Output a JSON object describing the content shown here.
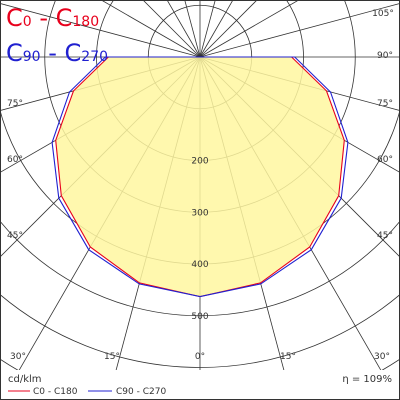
{
  "legend": {
    "c0": {
      "main": "C",
      "sub": "0",
      "sep": " - ",
      "main2": "C",
      "sub2": "180"
    },
    "c90": {
      "main": "C",
      "sub": "90",
      "sep": " - ",
      "main2": "C",
      "sub2": "270"
    }
  },
  "footer": {
    "units": "cd/klm",
    "efficiency": "η = 109%",
    "series_c0": "C0 - C180",
    "series_c90": "C90 - C270"
  },
  "colors": {
    "c0": "#e8001c",
    "c90": "#2020d0",
    "fill": "#fff7a0",
    "grid": "#333333"
  },
  "chart_data": {
    "type": "polar",
    "units": "cd/klm",
    "radial_ticks": [
      100,
      200,
      300,
      400,
      500
    ],
    "radial_tick_labels": [
      "200",
      "300",
      "400",
      "500"
    ],
    "angle_ticks_deg": [
      0,
      15,
      30,
      45,
      60,
      75,
      90,
      105
    ],
    "angle_labels": {
      "bottom": [
        "30°",
        "15°",
        "0°",
        "15°",
        "30°"
      ],
      "left": [
        "45°",
        "60°",
        "75°"
      ],
      "right": [
        "45°",
        "60°",
        "75°",
        "90°",
        "105°"
      ]
    },
    "series": [
      {
        "name": "C0 - C180",
        "angles_deg": [
          0,
          15,
          30,
          45,
          60,
          75,
          90
        ],
        "values": [
          463,
          452,
          424,
          379,
          322,
          253,
          177
        ]
      },
      {
        "name": "C90 - C270",
        "angles_deg": [
          0,
          15,
          30,
          45,
          60,
          75,
          90
        ],
        "values": [
          463,
          454,
          430,
          386,
          330,
          261,
          183
        ]
      }
    ]
  }
}
